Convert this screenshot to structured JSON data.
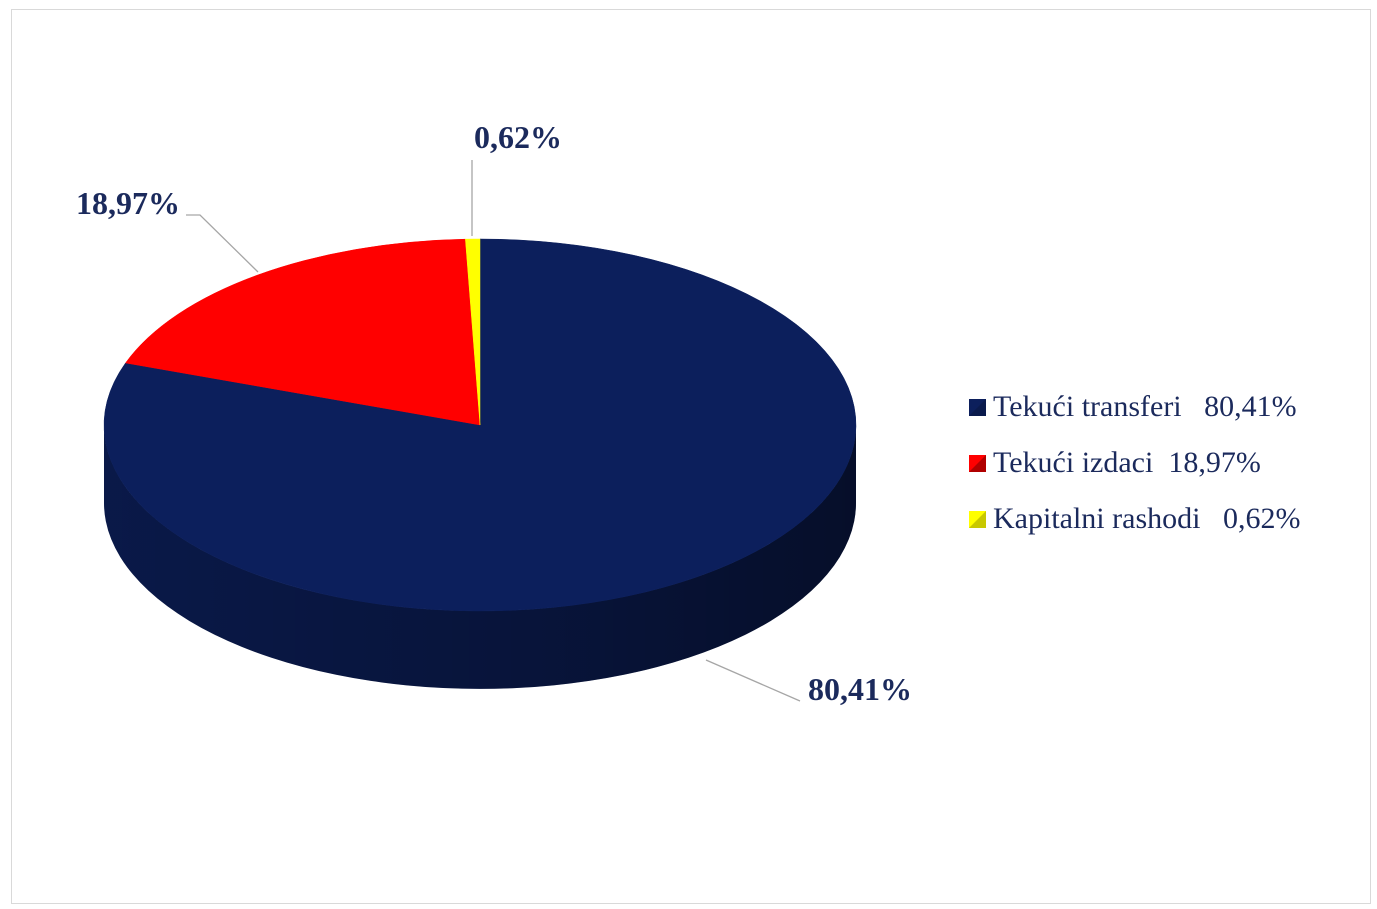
{
  "chart_data": {
    "type": "pie",
    "categories": [
      "Tekući transferi",
      "Tekući izdaci",
      "Kapitalni rashodi"
    ],
    "values": [
      80.41,
      18.97,
      0.62
    ],
    "data_labels": [
      "80,41%",
      "18,97%",
      "0,62%"
    ],
    "legend_entries": [
      "Tekući transferi   80,41%",
      "Tekući izdaci  18,97%",
      "Kapitalni rashodi   0,62%"
    ],
    "colors": [
      "#0c1f5c",
      "#ff0000",
      "#ffff00"
    ],
    "side_colors": [
      "#0a1a4c",
      "#b00000",
      "#c8c800"
    ],
    "legend_position": "right",
    "style": "3d"
  }
}
